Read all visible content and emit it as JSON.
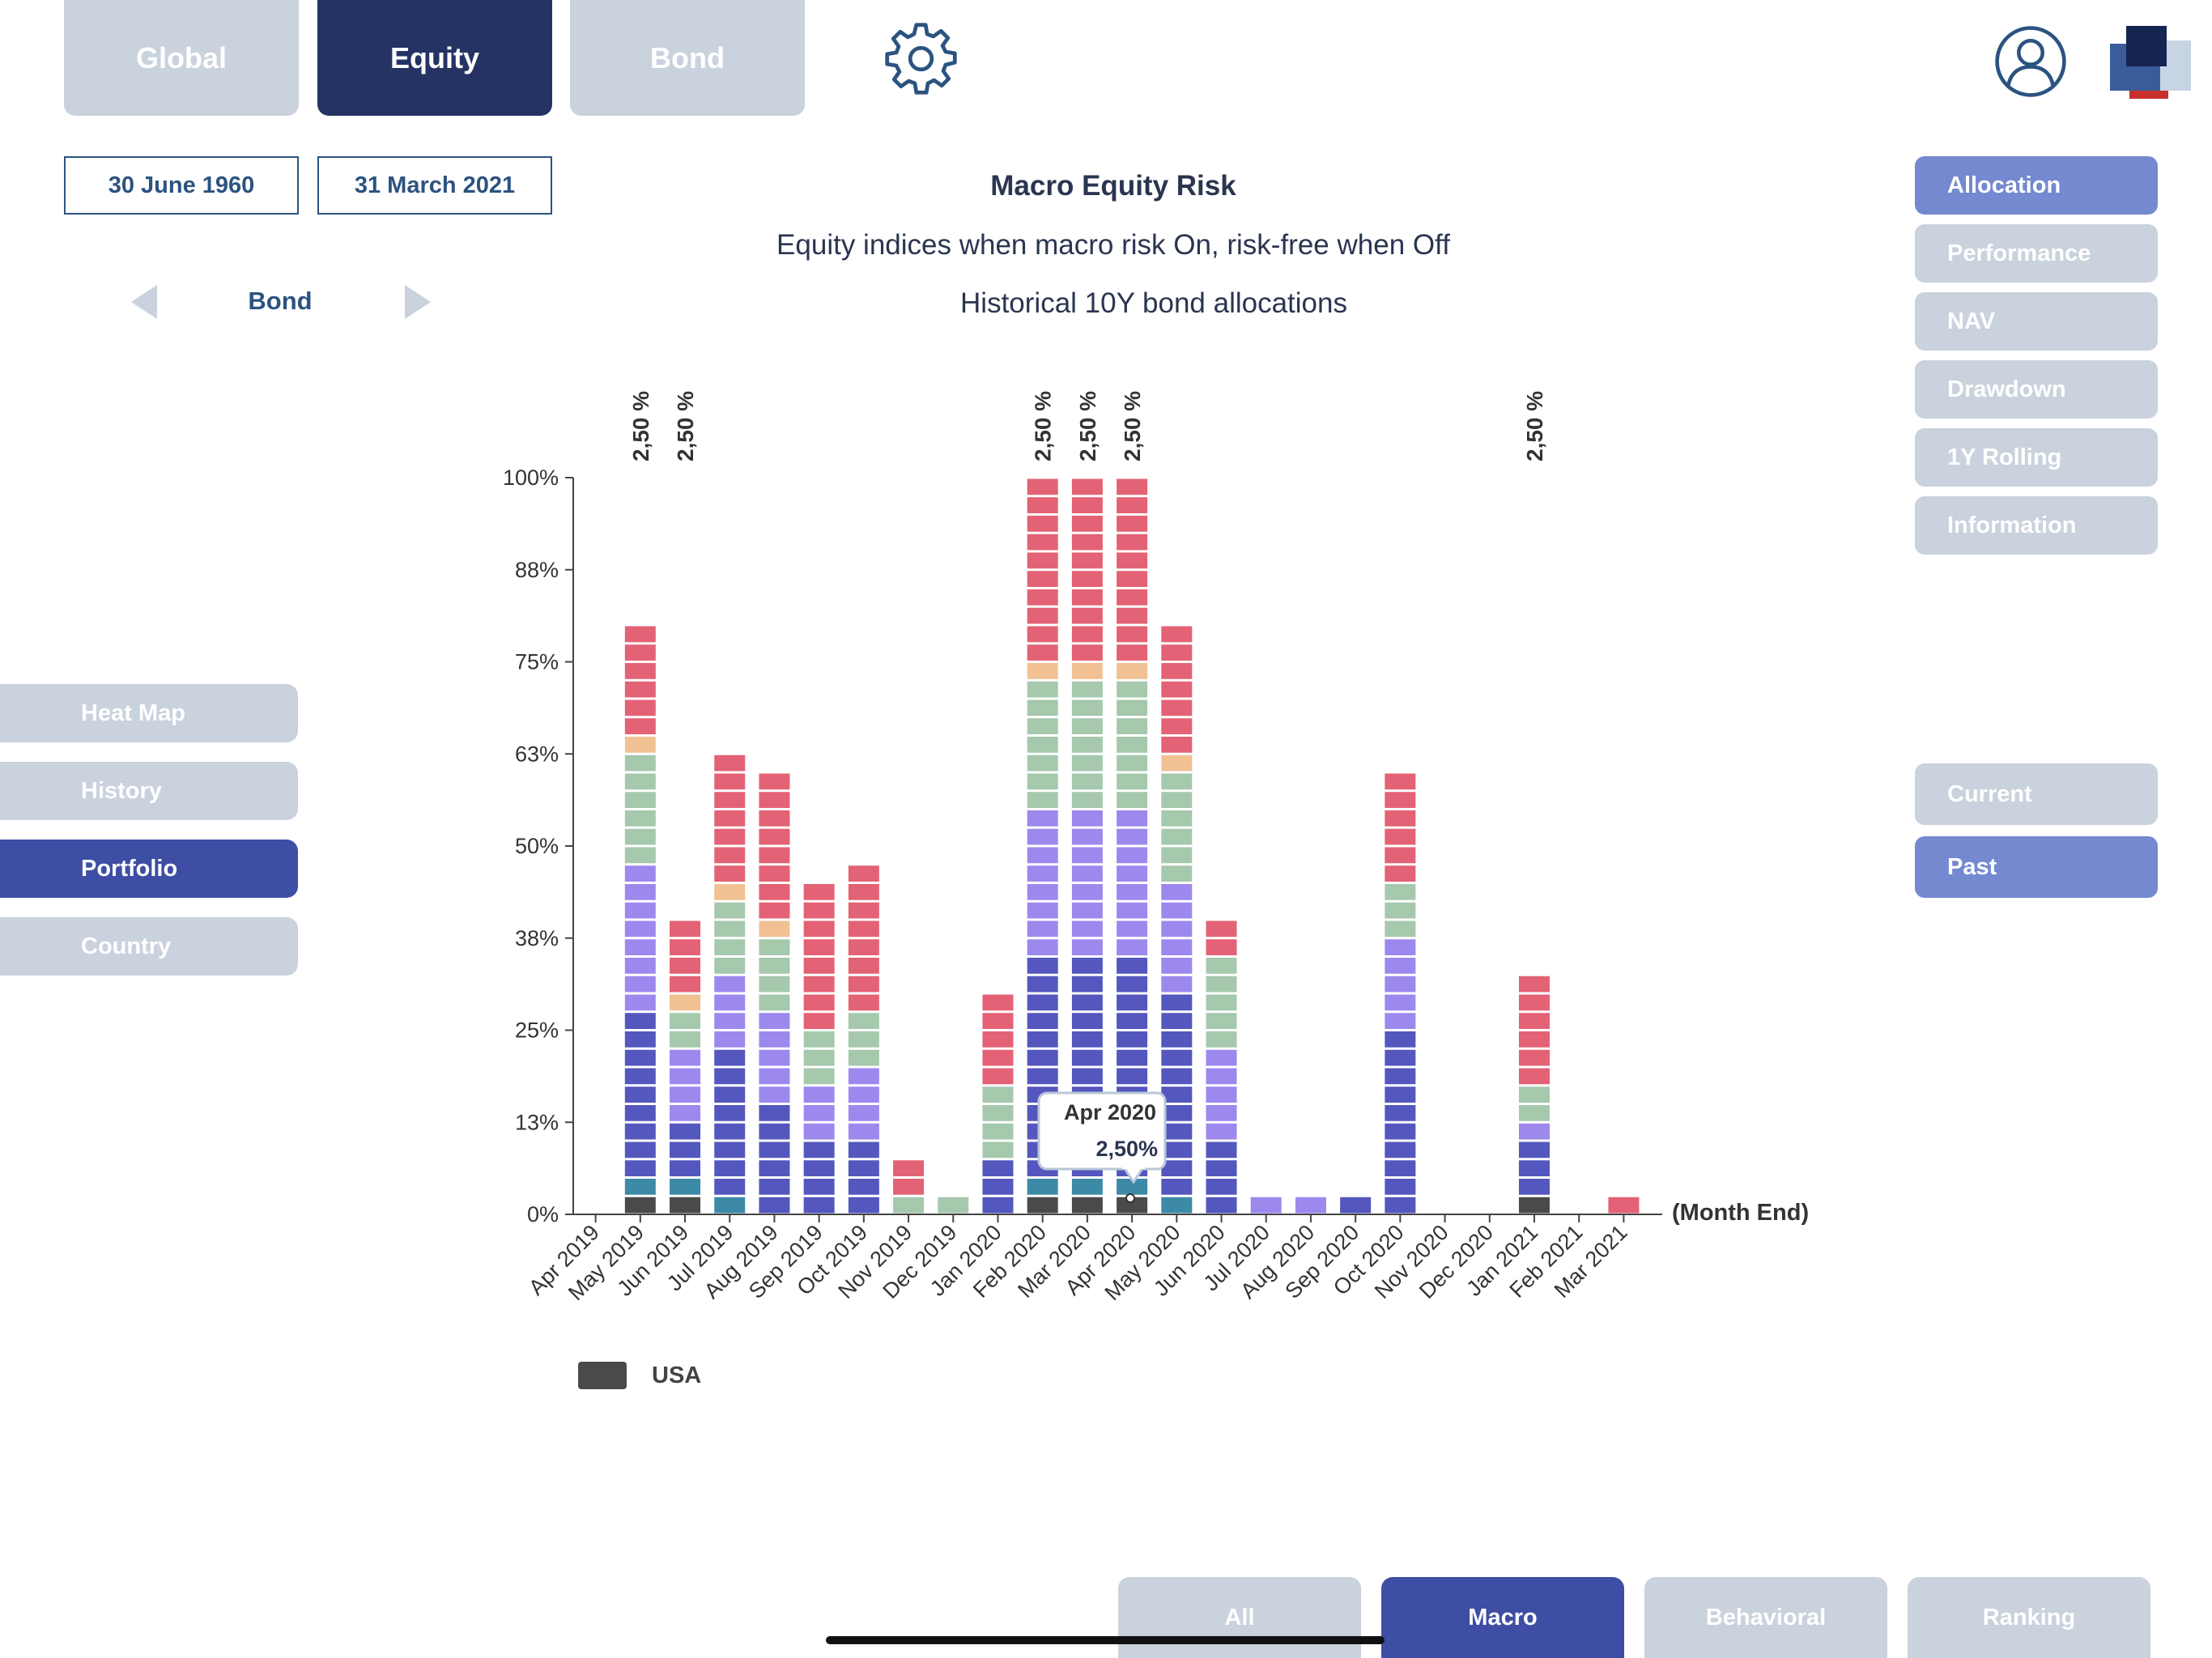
{
  "top_tabs": {
    "global": "Global",
    "equity": "Equity",
    "bond": "Bond"
  },
  "icons": {
    "settings": "gear-icon",
    "profile": "user-avatar-icon",
    "logo": "app-logo-icon",
    "prev": "triangle-left-icon",
    "next": "triangle-right-icon"
  },
  "dates": {
    "start": "30 June 1960",
    "end": "31 March 2021"
  },
  "asset_selector": {
    "label": "Bond"
  },
  "header": {
    "title": "Macro Equity Risk",
    "subtitle": "Equity indices when macro risk On, risk-free when Off",
    "caption": "Historical 10Y bond allocations"
  },
  "right_menu": [
    "Allocation",
    "Performance",
    "NAV",
    "Drawdown",
    "1Y Rolling",
    "Information"
  ],
  "left_menu": [
    "Heat Map",
    "History",
    "Portfolio",
    "Country"
  ],
  "time_toggle": {
    "current": "Current",
    "past": "Past"
  },
  "bottom_tabs": [
    "All",
    "Macro",
    "Behavioral",
    "Ranking"
  ],
  "legend": {
    "label": "USA",
    "color": "#4a4a4a"
  },
  "tooltip": {
    "title": "Apr 2020",
    "value": "2,50%"
  },
  "colors": {
    "accent_navy": "#253364",
    "accent_blue": "#3e4ea4",
    "accent_light": "#7489cf",
    "inactive": "#c9d2dd",
    "segments": {
      "dark": "#4a4a4a",
      "teal": "#3d8aa6",
      "indigo": "#5457bd",
      "lavender": "#9d88ee",
      "sage": "#a6c8ad",
      "peach": "#f1c194",
      "red": "#e36275"
    }
  },
  "chart_data": {
    "type": "bar",
    "stacked": true,
    "segment_step_pct": 2.5,
    "categories": [
      "Apr 2019",
      "May 2019",
      "Jun 2019",
      "Jul 2019",
      "Aug 2019",
      "Sep 2019",
      "Oct 2019",
      "Nov 2019",
      "Dec 2019",
      "Jan 2020",
      "Feb 2020",
      "Mar 2020",
      "Apr 2020",
      "May 2020",
      "Jun 2020",
      "Jul 2020",
      "Aug 2020",
      "Sep 2020",
      "Oct 2020",
      "Nov 2020",
      "Dec 2020",
      "Jan 2021",
      "Feb 2021",
      "Mar 2021"
    ],
    "y_ticks": [
      "0%",
      "13%",
      "25%",
      "38%",
      "50%",
      "63%",
      "75%",
      "88%",
      "100%"
    ],
    "ylim": [
      0,
      100
    ],
    "xlabel": "(Month End)",
    "top_labels": [
      {
        "category": "May 2019",
        "text": "2,50 %"
      },
      {
        "category": "Jun 2019",
        "text": "2,50 %"
      },
      {
        "category": "Feb 2020",
        "text": "2,50 %"
      },
      {
        "category": "Mar 2020",
        "text": "2,50 %"
      },
      {
        "category": "Apr 2020",
        "text": "2,50 %"
      },
      {
        "category": "Jan 2021",
        "text": "2,50 %"
      }
    ],
    "series_order": [
      "dark",
      "teal",
      "indigo",
      "lavender",
      "sage",
      "peach",
      "red"
    ],
    "stacks": [
      {},
      {
        "dark": 1,
        "teal": 1,
        "indigo": 9,
        "lavender": 8,
        "sage": 6,
        "peach": 1,
        "red": 6
      },
      {
        "dark": 1,
        "teal": 1,
        "indigo": 3,
        "lavender": 4,
        "sage": 2,
        "peach": 1,
        "red": 4
      },
      {
        "teal": 1,
        "indigo": 8,
        "lavender": 4,
        "sage": 4,
        "peach": 1,
        "red": 7
      },
      {
        "indigo": 6,
        "lavender": 5,
        "sage": 4,
        "peach": 1,
        "red": 8
      },
      {
        "indigo": 4,
        "lavender": 3,
        "sage": 3,
        "red": 8
      },
      {
        "indigo": 4,
        "lavender": 4,
        "sage": 3,
        "red": 8
      },
      {
        "sage": 1,
        "red": 2
      },
      {
        "sage": 1
      },
      {
        "indigo": 3,
        "sage": 4,
        "red": 5
      },
      {
        "dark": 1,
        "teal": 1,
        "indigo": 12,
        "lavender": 8,
        "sage": 7,
        "peach": 1,
        "red": 10
      },
      {
        "dark": 1,
        "teal": 1,
        "indigo": 12,
        "lavender": 8,
        "sage": 7,
        "peach": 1,
        "red": 10
      },
      {
        "dark": 1,
        "teal": 1,
        "indigo": 12,
        "lavender": 8,
        "sage": 7,
        "peach": 1,
        "red": 10
      },
      {
        "teal": 1,
        "indigo": 11,
        "lavender": 6,
        "sage": 6,
        "peach": 1,
        "red": 7
      },
      {
        "indigo": 4,
        "lavender": 5,
        "sage": 5,
        "red": 2
      },
      {
        "lavender": 1
      },
      {
        "lavender": 1
      },
      {
        "indigo": 1
      },
      {
        "indigo": 10,
        "lavender": 5,
        "sage": 3,
        "red": 6
      },
      {},
      {},
      {
        "dark": 1,
        "indigo": 3,
        "lavender": 1,
        "sage": 2,
        "red": 6
      },
      {},
      {
        "red": 1
      }
    ]
  }
}
